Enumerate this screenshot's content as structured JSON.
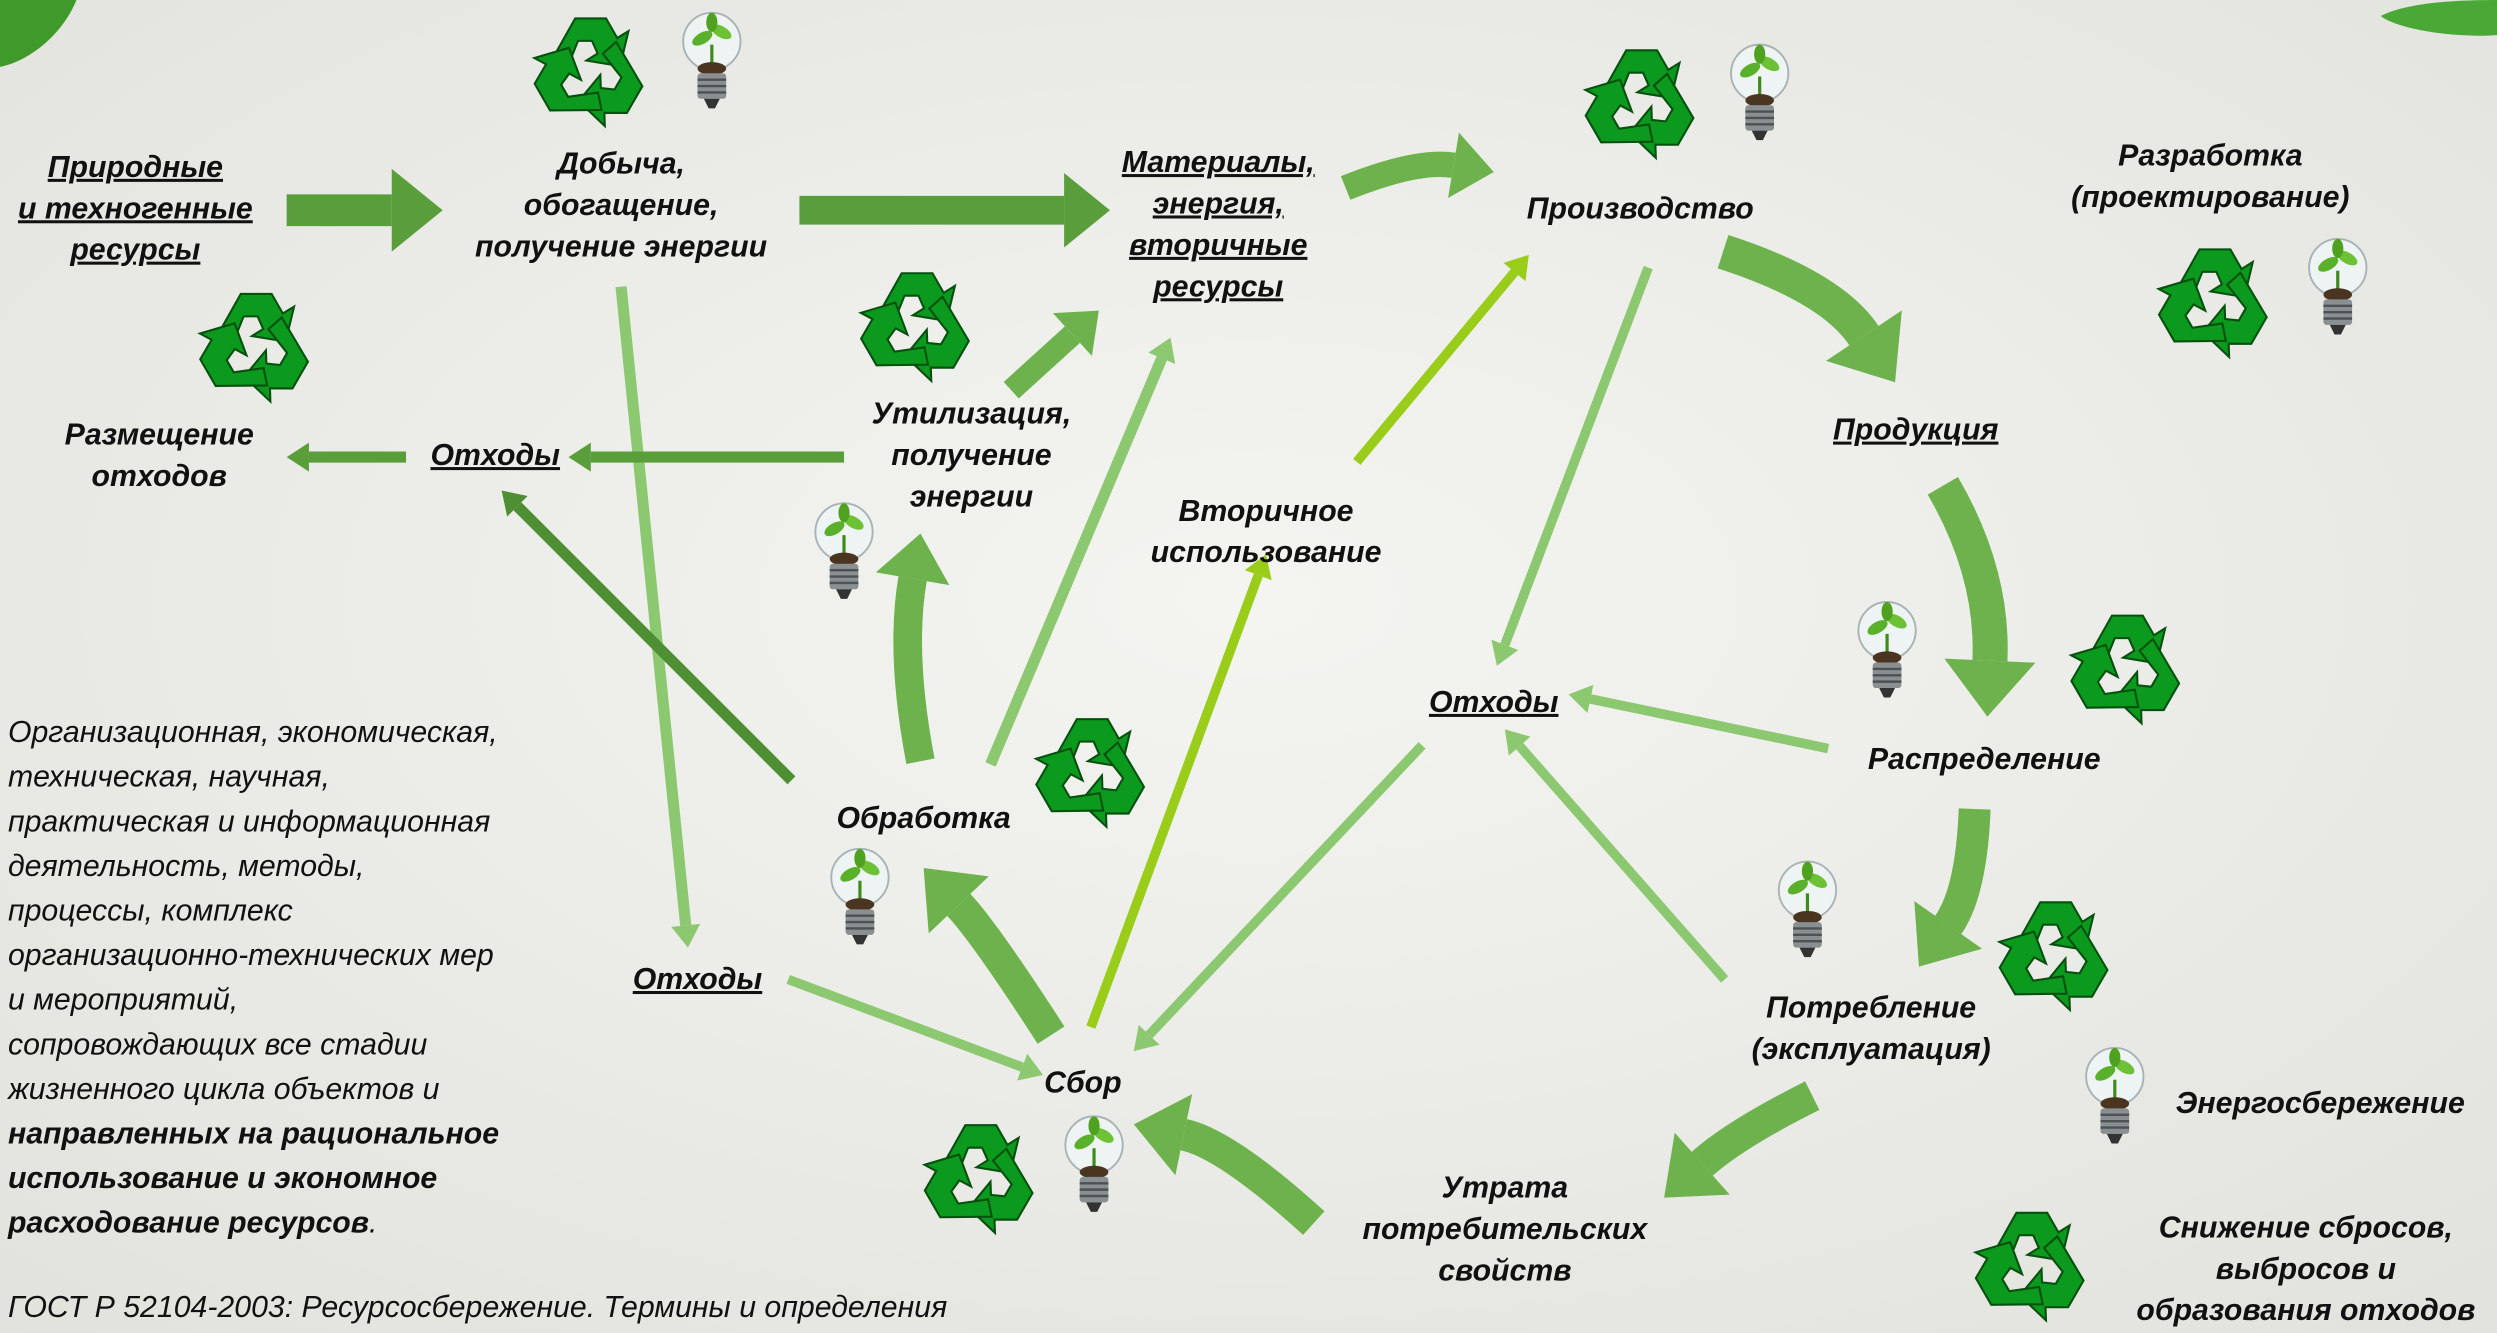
{
  "nodes": [
    {
      "lines": [
        "Природные",
        "и техногенные",
        "ресурсы"
      ],
      "underlined": true
    },
    {
      "lines": [
        "Добыча,",
        "обогащение,",
        "получение энергии"
      ],
      "underlined": false
    },
    {
      "lines": [
        "Материалы,",
        "энергия,",
        "вторичные",
        "ресурсы"
      ],
      "underlined": true
    },
    {
      "lines": [
        "Производство"
      ],
      "underlined": false
    },
    {
      "lines": [
        "Разработка",
        "(проектирование)"
      ],
      "underlined": false
    },
    {
      "lines": [
        "Размещение",
        "отходов"
      ],
      "underlined": false
    },
    {
      "lines": [
        "Отходы"
      ],
      "underlined": true
    },
    {
      "lines": [
        "Утилизация,",
        "получение",
        "энергии"
      ],
      "underlined": false
    },
    {
      "lines": [
        "Вторичное",
        "использование"
      ],
      "underlined": false
    },
    {
      "lines": [
        "Продукция"
      ],
      "underlined": true
    },
    {
      "lines": [
        "Отходы"
      ],
      "underlined": true
    },
    {
      "lines": [
        "Распределение"
      ],
      "underlined": false
    },
    {
      "lines": [
        "Обработка"
      ],
      "underlined": false
    },
    {
      "lines": [
        "Отходы"
      ],
      "underlined": true
    },
    {
      "lines": [
        "Сбор"
      ],
      "underlined": false
    },
    {
      "lines": [
        "Потребление",
        "(эксплуатация)"
      ],
      "underlined": false
    },
    {
      "lines": [
        "Энергосбережение"
      ],
      "underlined": false
    },
    {
      "lines": [
        "Утрата",
        "потребительских",
        "свойств"
      ],
      "underlined": false
    },
    {
      "lines": [
        "Снижение сбросов,",
        "выбросов и",
        "образования отходов"
      ],
      "underlined": false
    }
  ],
  "definition": {
    "lines": [
      "Организационная, экономическая,",
      "техническая, научная,",
      "практическая и информационная",
      "деятельность, методы,",
      "процессы, комплекс",
      "организационно-технических мер",
      "и мероприятий,",
      "сопровождающих все стадии",
      "жизненного цикла объектов и"
    ],
    "emphasis": [
      "направленных на рациональное",
      "использование и экономное",
      "расходование ресурсов"
    ],
    "end": "."
  },
  "source": "ГОСТ Р 52104-2003: Ресурсосбережение. Термины и определения"
}
